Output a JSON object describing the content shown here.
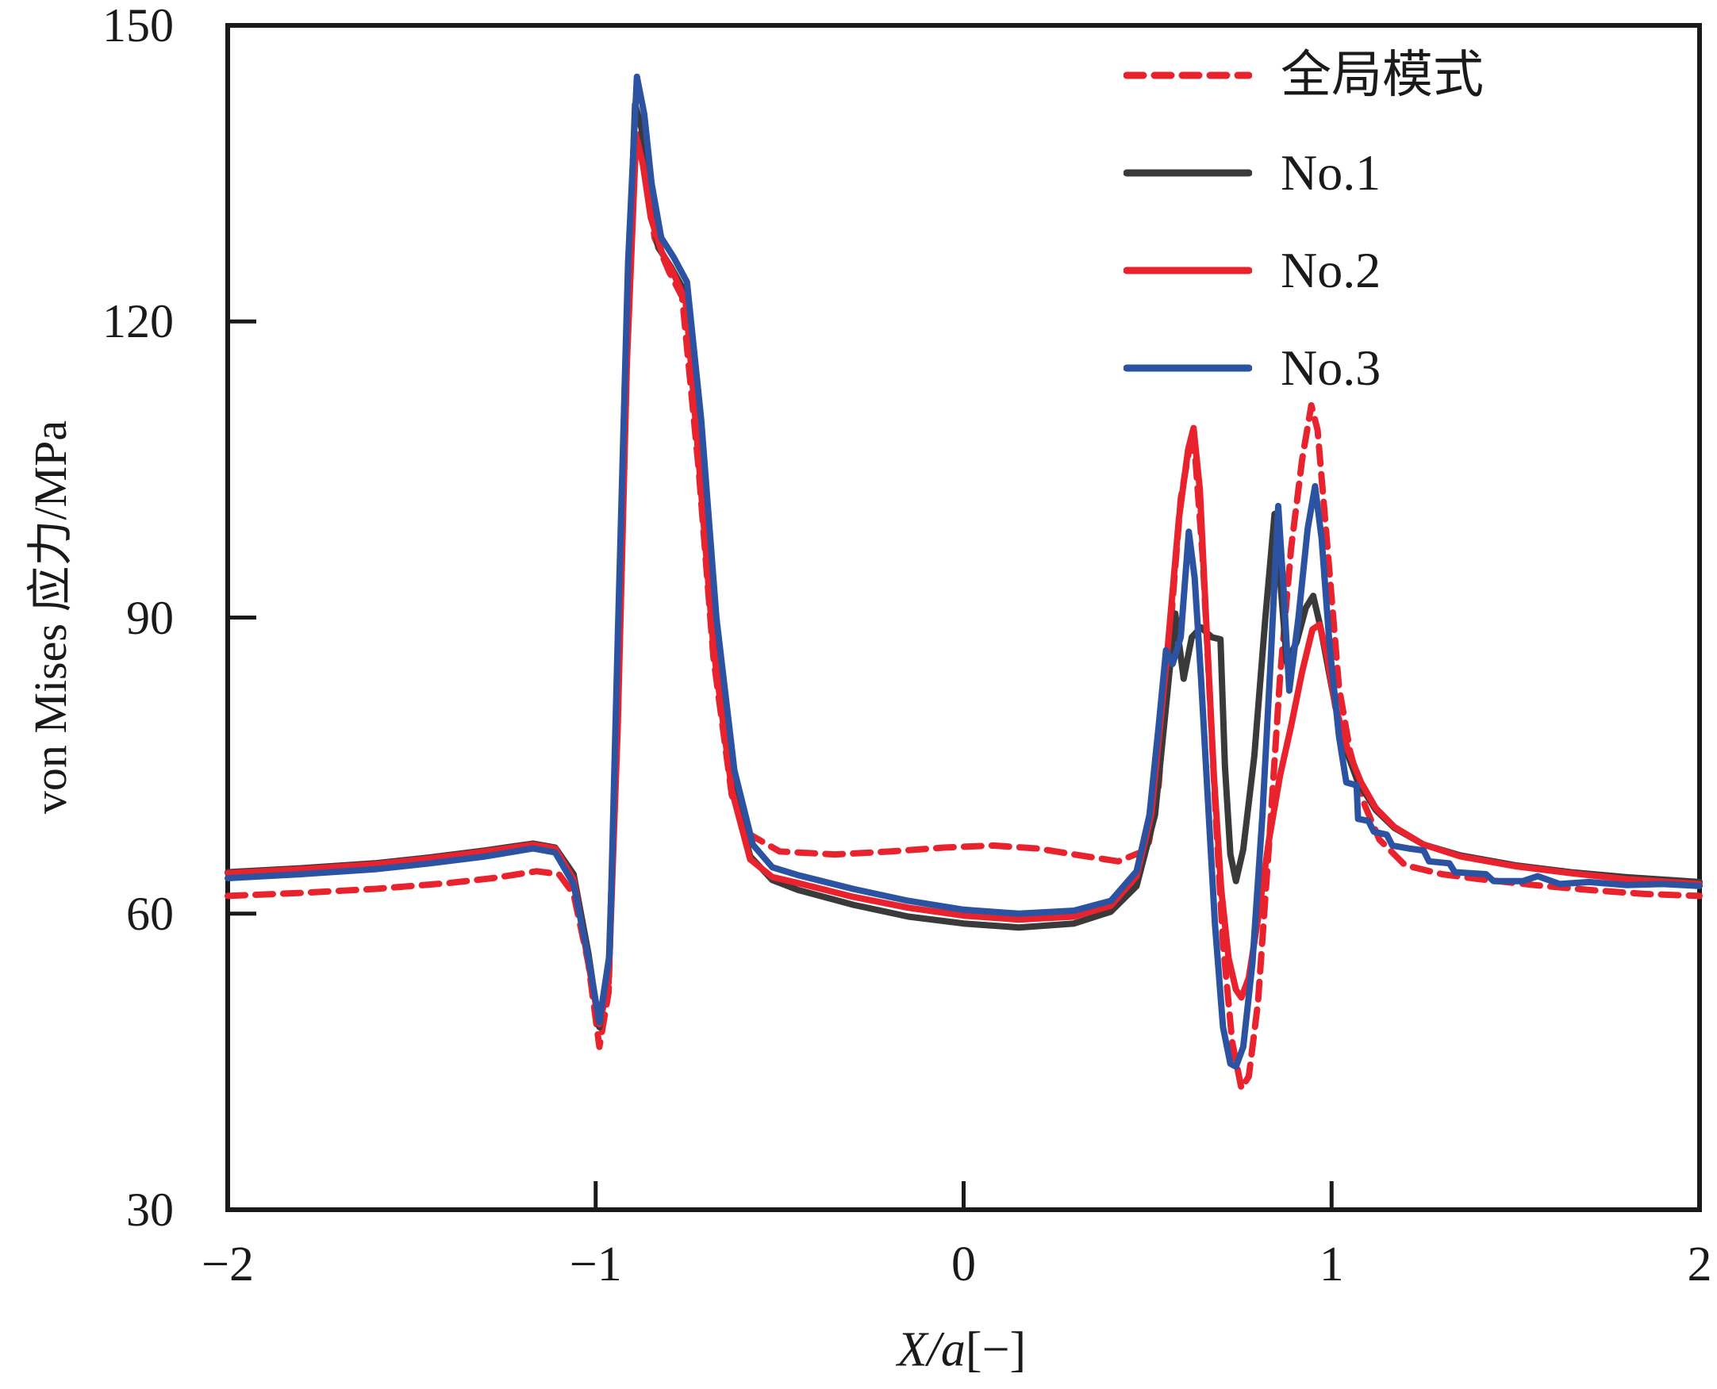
{
  "figure": {
    "background": "#ffffff",
    "frame_color": "#1a1a1a"
  },
  "chart_data": {
    "type": "line",
    "title": "",
    "xlabel": "X/a[−]",
    "xlabel_main": "X/a",
    "xlabel_unit": "[−]",
    "ylabel": "von Mises 应力/MPa",
    "xlim": [
      -2,
      2
    ],
    "ylim": [
      30,
      150
    ],
    "xticks": [
      -2,
      -1,
      0,
      1,
      2
    ],
    "xtick_labels": [
      "−2",
      "−1",
      "0",
      "1",
      "2"
    ],
    "yticks": [
      30,
      60,
      90,
      120,
      150
    ],
    "ytick_labels": [
      "30",
      "60",
      "90",
      "120",
      "150"
    ],
    "grid": false,
    "legend_position": "upper right",
    "series": [
      {
        "key": "global-mode",
        "name": "全局模式",
        "color": "#e8232e",
        "style": "dashed",
        "points": [
          [
            -2.0,
            61.8
          ],
          [
            -1.8,
            62.1
          ],
          [
            -1.6,
            62.5
          ],
          [
            -1.4,
            63.1
          ],
          [
            -1.28,
            63.6
          ],
          [
            -1.16,
            64.3
          ],
          [
            -1.1,
            64.0
          ],
          [
            -1.06,
            62.0
          ],
          [
            -1.02,
            55.0
          ],
          [
            -0.99,
            46.5
          ],
          [
            -0.965,
            52.0
          ],
          [
            -0.945,
            78.0
          ],
          [
            -0.92,
            115.0
          ],
          [
            -0.895,
            136.0
          ],
          [
            -0.88,
            139.0
          ],
          [
            -0.865,
            135.5
          ],
          [
            -0.84,
            128.5
          ],
          [
            -0.8,
            125.0
          ],
          [
            -0.765,
            122.5
          ],
          [
            -0.72,
            105.0
          ],
          [
            -0.68,
            86.0
          ],
          [
            -0.63,
            72.0
          ],
          [
            -0.58,
            68.0
          ],
          [
            -0.5,
            66.3
          ],
          [
            -0.35,
            66.0
          ],
          [
            -0.2,
            66.3
          ],
          [
            -0.05,
            66.7
          ],
          [
            0.08,
            66.9
          ],
          [
            0.2,
            66.6
          ],
          [
            0.3,
            66.0
          ],
          [
            0.42,
            65.3
          ],
          [
            0.5,
            66.5
          ],
          [
            0.53,
            73.0
          ],
          [
            0.56,
            88.0
          ],
          [
            0.59,
            102.0
          ],
          [
            0.615,
            107.5
          ],
          [
            0.63,
            106.0
          ],
          [
            0.65,
            96.0
          ],
          [
            0.665,
            85.0
          ],
          [
            0.685,
            70.0
          ],
          [
            0.705,
            57.0
          ],
          [
            0.73,
            47.0
          ],
          [
            0.755,
            42.3
          ],
          [
            0.775,
            43.5
          ],
          [
            0.8,
            51.0
          ],
          [
            0.83,
            67.0
          ],
          [
            0.86,
            84.0
          ],
          [
            0.89,
            97.0
          ],
          [
            0.92,
            106.0
          ],
          [
            0.945,
            111.5
          ],
          [
            0.962,
            109.0
          ],
          [
            0.98,
            101.0
          ],
          [
            1.0,
            92.0
          ],
          [
            1.02,
            83.0
          ],
          [
            1.05,
            76.5
          ],
          [
            1.09,
            71.0
          ],
          [
            1.13,
            67.5
          ],
          [
            1.2,
            64.9
          ],
          [
            1.3,
            64.0
          ],
          [
            1.4,
            63.5
          ],
          [
            1.55,
            62.9
          ],
          [
            1.7,
            62.4
          ],
          [
            1.85,
            62.0
          ],
          [
            2.0,
            61.8
          ]
        ]
      },
      {
        "key": "no1",
        "name": "No.1",
        "color": "#3a3a3a",
        "style": "solid",
        "points": [
          [
            -2.0,
            64.2
          ],
          [
            -1.8,
            64.6
          ],
          [
            -1.6,
            65.1
          ],
          [
            -1.45,
            65.7
          ],
          [
            -1.3,
            66.4
          ],
          [
            -1.17,
            67.1
          ],
          [
            -1.11,
            66.7
          ],
          [
            -1.06,
            64.0
          ],
          [
            -1.02,
            56.0
          ],
          [
            -0.99,
            48.5
          ],
          [
            -0.965,
            54.0
          ],
          [
            -0.94,
            82.0
          ],
          [
            -0.915,
            120.0
          ],
          [
            -0.893,
            142.0
          ],
          [
            -0.875,
            139.5
          ],
          [
            -0.855,
            133.0
          ],
          [
            -0.83,
            127.5
          ],
          [
            -0.795,
            125.5
          ],
          [
            -0.758,
            123.0
          ],
          [
            -0.72,
            108.0
          ],
          [
            -0.68,
            88.0
          ],
          [
            -0.63,
            73.0
          ],
          [
            -0.58,
            65.8
          ],
          [
            -0.52,
            63.4
          ],
          [
            -0.45,
            62.4
          ],
          [
            -0.3,
            60.9
          ],
          [
            -0.15,
            59.7
          ],
          [
            0.0,
            59.0
          ],
          [
            0.15,
            58.6
          ],
          [
            0.3,
            59.0
          ],
          [
            0.4,
            60.2
          ],
          [
            0.47,
            62.8
          ],
          [
            0.52,
            70.0
          ],
          [
            0.55,
            81.0
          ],
          [
            0.575,
            90.4
          ],
          [
            0.598,
            83.8
          ],
          [
            0.62,
            88.0
          ],
          [
            0.645,
            89.0
          ],
          [
            0.675,
            88.0
          ],
          [
            0.698,
            87.8
          ],
          [
            0.71,
            75.0
          ],
          [
            0.725,
            66.0
          ],
          [
            0.74,
            63.3
          ],
          [
            0.76,
            66.5
          ],
          [
            0.79,
            76.0
          ],
          [
            0.82,
            90.0
          ],
          [
            0.845,
            100.5
          ],
          [
            0.862,
            93.0
          ],
          [
            0.878,
            85.5
          ],
          [
            0.905,
            87.5
          ],
          [
            0.93,
            91.0
          ],
          [
            0.95,
            92.2
          ],
          [
            0.97,
            89.0
          ],
          [
            1.0,
            83.0
          ],
          [
            1.03,
            77.5
          ],
          [
            1.07,
            73.5
          ],
          [
            1.12,
            70.5
          ],
          [
            1.17,
            68.7
          ],
          [
            1.25,
            67.0
          ],
          [
            1.35,
            65.9
          ],
          [
            1.5,
            64.9
          ],
          [
            1.65,
            64.2
          ],
          [
            1.8,
            63.7
          ],
          [
            2.0,
            63.2
          ]
        ]
      },
      {
        "key": "no2",
        "name": "No.2",
        "color": "#e8232e",
        "style": "solid",
        "points": [
          [
            -2.0,
            64.1
          ],
          [
            -1.8,
            64.5
          ],
          [
            -1.6,
            65.0
          ],
          [
            -1.45,
            65.6
          ],
          [
            -1.3,
            66.3
          ],
          [
            -1.17,
            67.0
          ],
          [
            -1.11,
            66.6
          ],
          [
            -1.06,
            63.5
          ],
          [
            -1.02,
            55.0
          ],
          [
            -0.99,
            48.8
          ],
          [
            -0.965,
            53.0
          ],
          [
            -0.94,
            79.0
          ],
          [
            -0.915,
            116.0
          ],
          [
            -0.89,
            138.8
          ],
          [
            -0.872,
            136.0
          ],
          [
            -0.85,
            130.5
          ],
          [
            -0.82,
            127.0
          ],
          [
            -0.79,
            125.0
          ],
          [
            -0.755,
            122.0
          ],
          [
            -0.72,
            106.0
          ],
          [
            -0.68,
            87.0
          ],
          [
            -0.63,
            72.5
          ],
          [
            -0.58,
            65.5
          ],
          [
            -0.52,
            63.7
          ],
          [
            -0.45,
            63.1
          ],
          [
            -0.3,
            61.7
          ],
          [
            -0.15,
            60.6
          ],
          [
            0.0,
            59.8
          ],
          [
            0.15,
            59.4
          ],
          [
            0.3,
            59.7
          ],
          [
            0.4,
            60.8
          ],
          [
            0.47,
            63.8
          ],
          [
            0.51,
            70.0
          ],
          [
            0.55,
            85.0
          ],
          [
            0.585,
            100.0
          ],
          [
            0.61,
            107.0
          ],
          [
            0.625,
            109.2
          ],
          [
            0.642,
            103.0
          ],
          [
            0.66,
            89.0
          ],
          [
            0.68,
            74.0
          ],
          [
            0.7,
            62.5
          ],
          [
            0.72,
            55.5
          ],
          [
            0.74,
            52.3
          ],
          [
            0.755,
            51.5
          ],
          [
            0.775,
            53.5
          ],
          [
            0.8,
            59.5
          ],
          [
            0.83,
            67.5
          ],
          [
            0.86,
            74.0
          ],
          [
            0.89,
            79.0
          ],
          [
            0.92,
            84.5
          ],
          [
            0.948,
            88.8
          ],
          [
            0.968,
            89.3
          ],
          [
            0.988,
            86.0
          ],
          [
            1.01,
            81.0
          ],
          [
            1.045,
            76.5
          ],
          [
            1.08,
            73.3
          ],
          [
            1.12,
            70.7
          ],
          [
            1.17,
            68.8
          ],
          [
            1.25,
            67.0
          ],
          [
            1.35,
            65.8
          ],
          [
            1.5,
            64.8
          ],
          [
            1.65,
            64.1
          ],
          [
            1.8,
            63.5
          ],
          [
            2.0,
            63.0
          ]
        ]
      },
      {
        "key": "no3",
        "name": "No.3",
        "color": "#2c53a2",
        "style": "solid",
        "points": [
          [
            -2.0,
            63.6
          ],
          [
            -1.8,
            64.0
          ],
          [
            -1.6,
            64.5
          ],
          [
            -1.45,
            65.1
          ],
          [
            -1.3,
            65.8
          ],
          [
            -1.17,
            66.6
          ],
          [
            -1.11,
            66.2
          ],
          [
            -1.06,
            63.0
          ],
          [
            -1.02,
            55.5
          ],
          [
            -0.99,
            49.0
          ],
          [
            -0.962,
            56.0
          ],
          [
            -0.94,
            88.0
          ],
          [
            -0.912,
            126.0
          ],
          [
            -0.888,
            144.8
          ],
          [
            -0.868,
            141.0
          ],
          [
            -0.848,
            134.0
          ],
          [
            -0.822,
            128.5
          ],
          [
            -0.788,
            126.5
          ],
          [
            -0.752,
            124.0
          ],
          [
            -0.713,
            110.0
          ],
          [
            -0.672,
            90.0
          ],
          [
            -0.623,
            74.5
          ],
          [
            -0.573,
            67.0
          ],
          [
            -0.52,
            64.7
          ],
          [
            -0.45,
            63.9
          ],
          [
            -0.3,
            62.5
          ],
          [
            -0.15,
            61.3
          ],
          [
            0.0,
            60.4
          ],
          [
            0.15,
            60.0
          ],
          [
            0.3,
            60.3
          ],
          [
            0.4,
            61.3
          ],
          [
            0.47,
            64.3
          ],
          [
            0.505,
            70.0
          ],
          [
            0.53,
            79.0
          ],
          [
            0.55,
            86.7
          ],
          [
            0.568,
            85.3
          ],
          [
            0.59,
            88.0
          ],
          [
            0.612,
            98.7
          ],
          [
            0.628,
            94.0
          ],
          [
            0.645,
            84.0
          ],
          [
            0.663,
            72.0
          ],
          [
            0.683,
            59.0
          ],
          [
            0.705,
            48.5
          ],
          [
            0.725,
            44.8
          ],
          [
            0.74,
            44.5
          ],
          [
            0.76,
            46.5
          ],
          [
            0.785,
            55.0
          ],
          [
            0.812,
            70.0
          ],
          [
            0.835,
            86.0
          ],
          [
            0.855,
            101.3
          ],
          [
            0.87,
            92.5
          ],
          [
            0.885,
            82.6
          ],
          [
            0.91,
            90.0
          ],
          [
            0.935,
            99.0
          ],
          [
            0.955,
            103.3
          ],
          [
            0.973,
            98.0
          ],
          [
            0.995,
            87.0
          ],
          [
            1.02,
            78.0
          ],
          [
            1.04,
            73.3
          ],
          [
            1.068,
            73.0
          ],
          [
            1.072,
            69.6
          ],
          [
            1.1,
            69.4
          ],
          [
            1.115,
            68.3
          ],
          [
            1.15,
            68.0
          ],
          [
            1.165,
            66.9
          ],
          [
            1.21,
            66.6
          ],
          [
            1.25,
            66.4
          ],
          [
            1.265,
            65.3
          ],
          [
            1.32,
            65.1
          ],
          [
            1.335,
            64.2
          ],
          [
            1.42,
            64.0
          ],
          [
            1.44,
            63.3
          ],
          [
            1.52,
            63.3
          ],
          [
            1.56,
            63.8
          ],
          [
            1.62,
            63.0
          ],
          [
            1.7,
            63.2
          ],
          [
            1.8,
            62.9
          ],
          [
            1.9,
            63.0
          ],
          [
            2.0,
            62.8
          ]
        ]
      }
    ]
  }
}
